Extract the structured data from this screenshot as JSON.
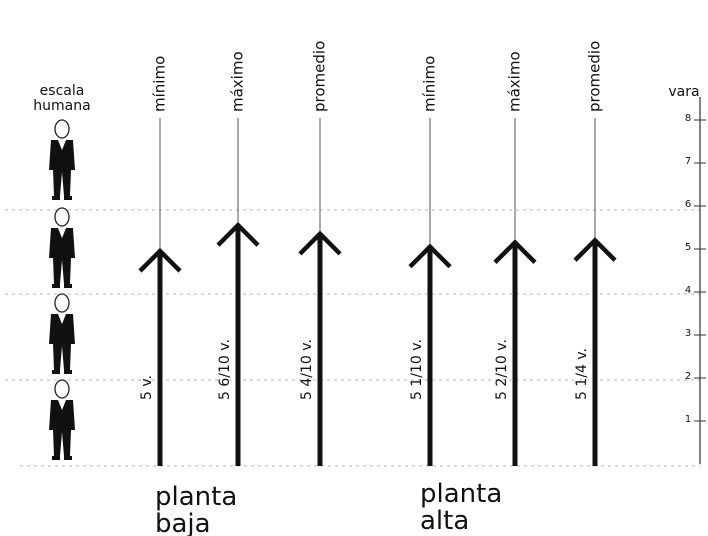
{
  "figure": {
    "human_scale_label_line1": "escala",
    "human_scale_label_line2": "humana",
    "unit_label": "vara",
    "scale_ticks": [
      "1",
      "2",
      "3",
      "4",
      "5",
      "6",
      "7",
      "8"
    ],
    "human_figures": 4,
    "columns": [
      {
        "heading": "mínimo",
        "value_label": "5 v.",
        "height_varas": 5.0,
        "group": "planta baja"
      },
      {
        "heading": "máximo",
        "value_label": "5 6/10 v.",
        "height_varas": 5.6,
        "group": "planta baja"
      },
      {
        "heading": "promedio",
        "value_label": "5 4/10 v.",
        "height_varas": 5.4,
        "group": "planta baja"
      },
      {
        "heading": "mínimo",
        "value_label": "5 1/10 v.",
        "height_varas": 5.1,
        "group": "planta alta"
      },
      {
        "heading": "máximo",
        "value_label": "5 2/10 v.",
        "height_varas": 5.2,
        "group": "planta alta"
      },
      {
        "heading": "promedio",
        "value_label": "5 1/4 v.",
        "height_varas": 5.25,
        "group": "planta alta"
      }
    ],
    "groups": [
      {
        "line1": "planta",
        "line2": "baja"
      },
      {
        "line1": "planta",
        "line2": "alta"
      }
    ],
    "colors": {
      "ink": "#111111",
      "grid": "#b5b5b5",
      "thin_line": "#555555"
    }
  }
}
